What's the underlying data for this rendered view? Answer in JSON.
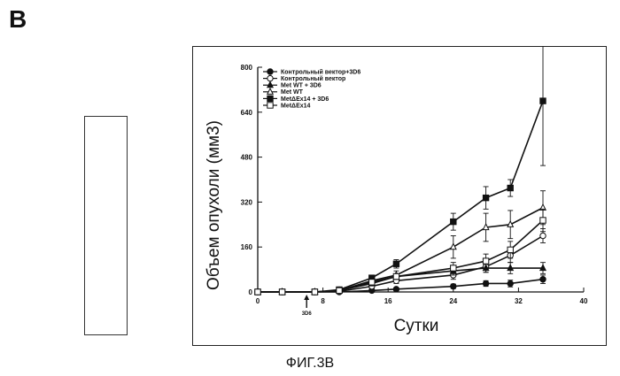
{
  "panel_letter": "B",
  "figure_caption": "ФИГ.3В",
  "annotation": {
    "label": "3D6",
    "x": 6
  },
  "colors": {
    "ink": "#111111",
    "frame": "#222222"
  },
  "chart_data": {
    "type": "line",
    "title": "",
    "xlabel": "Сутки",
    "ylabel": "Объем опухоли (мм3)",
    "xlim": [
      0,
      40
    ],
    "ylim": [
      0,
      800
    ],
    "xticks": [
      "0",
      "8",
      "16",
      "24",
      "32",
      "40"
    ],
    "yticks": [
      "0",
      "160",
      "320",
      "480",
      "640",
      "800"
    ],
    "legend_position": "top-left",
    "x": [
      0,
      3,
      7,
      10,
      14,
      17,
      24,
      28,
      31,
      35
    ],
    "series": [
      {
        "name": "Контрольный вектор+3D6",
        "marker": "filled-circle",
        "values": [
          0,
          0,
          0,
          0,
          5,
          10,
          20,
          30,
          30,
          45
        ],
        "errors": [
          0,
          0,
          0,
          0,
          3,
          4,
          8,
          10,
          12,
          15
        ]
      },
      {
        "name": "Контрольный вектор",
        "marker": "open-circle",
        "values": [
          0,
          0,
          0,
          2,
          20,
          40,
          60,
          90,
          130,
          200
        ],
        "errors": [
          0,
          0,
          0,
          2,
          6,
          10,
          15,
          20,
          25,
          25
        ]
      },
      {
        "name": "Met WT + 3D6",
        "marker": "filled-triangle",
        "values": [
          0,
          0,
          0,
          5,
          30,
          55,
          75,
          85,
          85,
          85
        ],
        "errors": [
          0,
          0,
          0,
          3,
          8,
          10,
          15,
          15,
          20,
          20
        ]
      },
      {
        "name": "Met WT",
        "marker": "open-triangle",
        "values": [
          0,
          0,
          0,
          5,
          40,
          60,
          160,
          230,
          240,
          300
        ],
        "errors": [
          0,
          0,
          0,
          4,
          10,
          15,
          40,
          50,
          50,
          60
        ]
      },
      {
        "name": "MetΔEx14 + 3D6",
        "marker": "filled-square",
        "values": [
          0,
          0,
          0,
          8,
          50,
          100,
          250,
          335,
          370,
          680
        ],
        "errors": [
          0,
          0,
          0,
          5,
          10,
          15,
          30,
          40,
          30,
          230
        ]
      },
      {
        "name": "MetΔEx14",
        "marker": "open-square",
        "values": [
          0,
          0,
          0,
          5,
          35,
          55,
          85,
          110,
          150,
          255
        ],
        "errors": [
          0,
          0,
          0,
          3,
          8,
          10,
          20,
          25,
          30,
          40
        ]
      }
    ]
  }
}
